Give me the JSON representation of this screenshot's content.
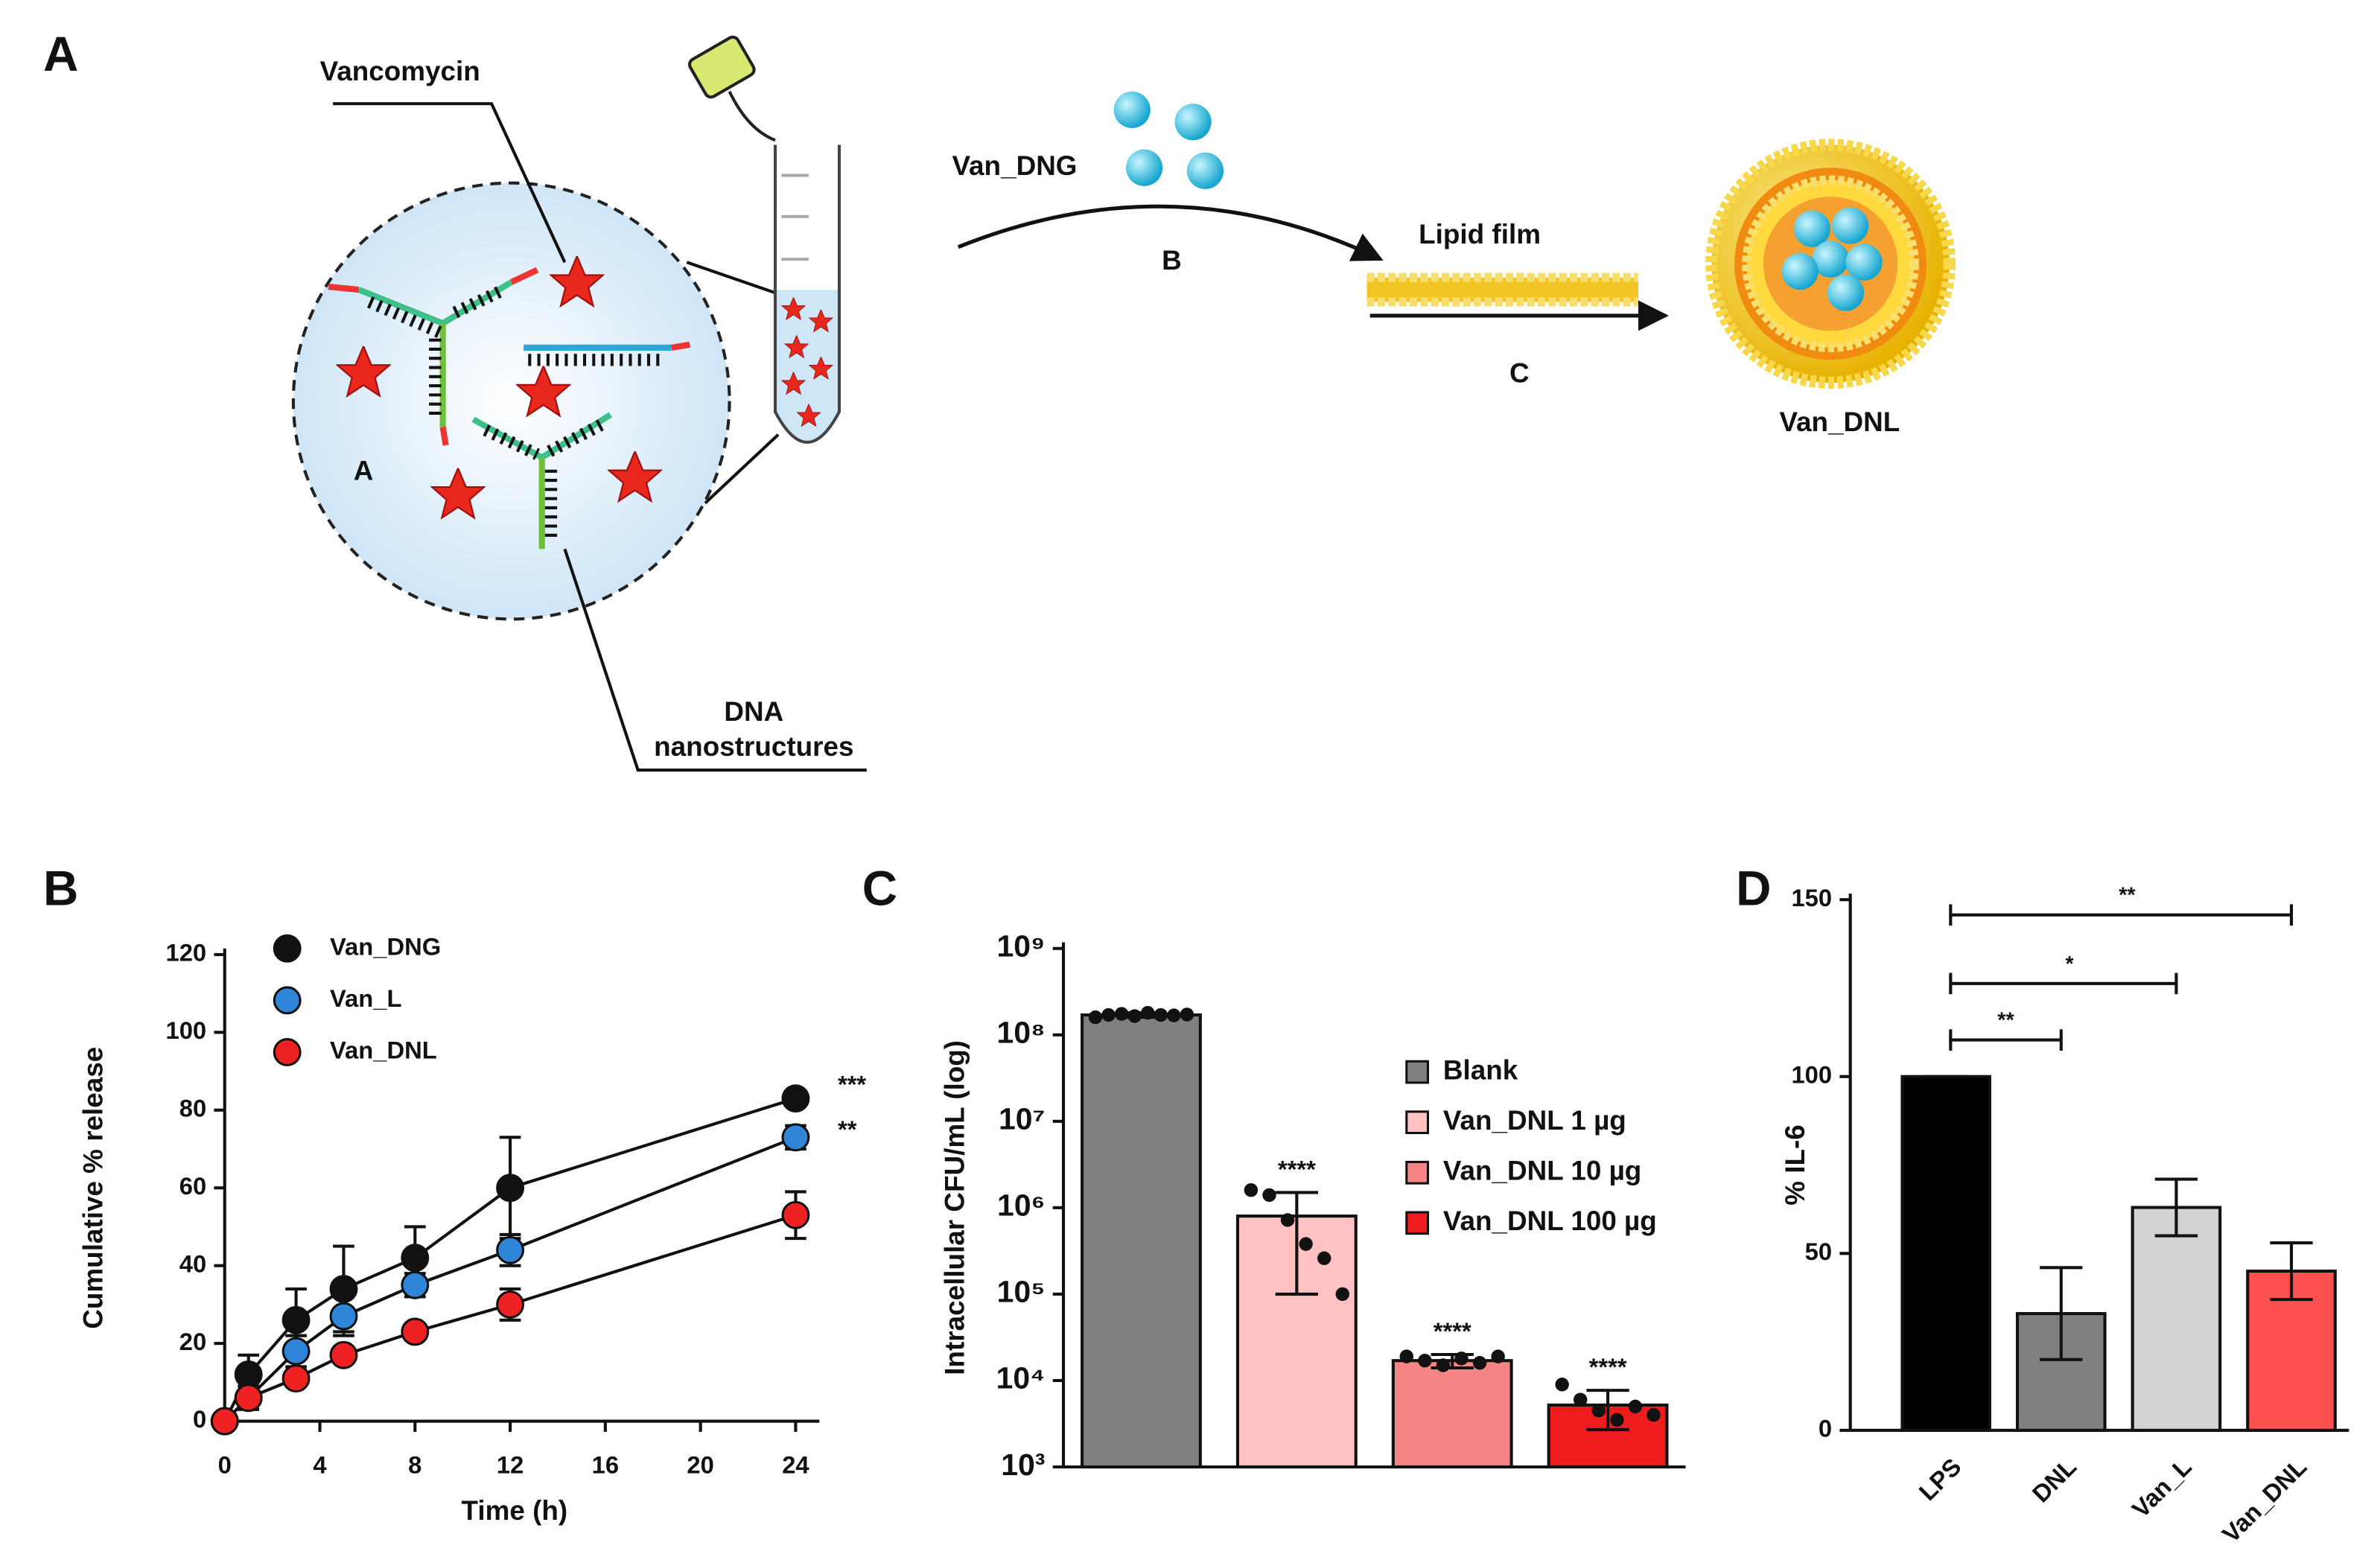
{
  "panel_labels": [
    "A",
    "B",
    "C",
    "D"
  ],
  "schematic": {
    "vancomycin": "Vancomycin",
    "label_a": "A",
    "dna": [
      "DNA",
      "nanostructures"
    ],
    "van_dng": "Van_DNG",
    "step_b": "B",
    "lipid_film": "Lipid film",
    "step_c": "C",
    "van_dnl": "Van_DNL"
  },
  "chart_data": [
    {
      "type": "line",
      "xlabel": "Time (h)",
      "ylabel": "Cumulative % release",
      "x": [
        0,
        1,
        3,
        5,
        8,
        12,
        24
      ],
      "xlim": [
        0,
        25
      ],
      "xticks": [
        0,
        4,
        8,
        12,
        16,
        20,
        24
      ],
      "ylim": [
        0,
        120
      ],
      "yticks": [
        0,
        20,
        40,
        60,
        80,
        100,
        120
      ],
      "legend": "upper left",
      "series": [
        {
          "name": "Van_DNG",
          "color": "#111111",
          "values": [
            0,
            12,
            26,
            34,
            42,
            60,
            83
          ],
          "errors": [
            0,
            5,
            8,
            11,
            8,
            13,
            2
          ]
        },
        {
          "name": "Van_L",
          "color": "#2f86d8",
          "values": [
            0,
            6,
            18,
            27,
            35,
            44,
            73
          ],
          "errors": [
            0,
            3,
            4,
            5,
            3,
            4,
            3
          ]
        },
        {
          "name": "Van_DNL",
          "color": "#ee2222",
          "values": [
            0,
            6,
            11,
            17,
            23,
            30,
            53
          ],
          "errors": [
            0,
            2,
            2,
            2,
            2,
            4,
            6
          ]
        }
      ],
      "annotations": [
        "***",
        "**"
      ]
    },
    {
      "type": "bar",
      "ylabel": "Intracellular CFU/mL (log)",
      "log_scale": true,
      "categories": [
        "Blank",
        "Van_DNL 1 µg",
        "Van_DNL 10 µg",
        "Van_DNL 100 µg"
      ],
      "values": [
        170000000,
        800000,
        17000,
        5200
      ],
      "errors": [
        10000000,
        700000,
        3000,
        2500
      ],
      "points": [
        [
          160000000,
          170000000,
          175000000,
          165000000,
          180000000,
          170000000,
          168000000,
          172000000
        ],
        [
          1600000,
          1400000,
          720000,
          380000,
          260000,
          100000
        ],
        [
          19000,
          17000,
          15000,
          18000,
          16000,
          19000
        ],
        [
          9000,
          6000,
          4500,
          3500,
          5000,
          4000
        ]
      ],
      "colors": [
        "#808080",
        "#ffc2c2",
        "#f58585",
        "#ee1c1c"
      ],
      "ylim": [
        1000,
        1000000000
      ],
      "yticks": [
        {
          "value": 1000,
          "label": "10³"
        },
        {
          "value": 10000,
          "label": "10⁴"
        },
        {
          "value": 100000,
          "label": "10⁵"
        },
        {
          "value": 1000000,
          "label": "10⁶"
        },
        {
          "value": 10000000,
          "label": "10⁷"
        },
        {
          "value": 100000000,
          "label": "10⁸"
        },
        {
          "value": 1000000000,
          "label": "10⁹"
        }
      ],
      "legend": "right",
      "annotations": [
        "****",
        "****",
        "****"
      ]
    },
    {
      "type": "bar",
      "ylabel": "% IL-6",
      "categories": [
        "LPS",
        "DNL",
        "Van_L",
        "Van_DNL"
      ],
      "values": [
        100,
        33,
        63,
        45
      ],
      "errors": [
        0,
        13,
        8,
        8
      ],
      "colors": [
        "#000000",
        "#808080",
        "#d3d3d3",
        "#ff5050"
      ],
      "ylim": [
        0,
        150
      ],
      "yticks": [
        0,
        50,
        100,
        150
      ],
      "annotations": [
        "**",
        "*",
        "**"
      ]
    }
  ]
}
